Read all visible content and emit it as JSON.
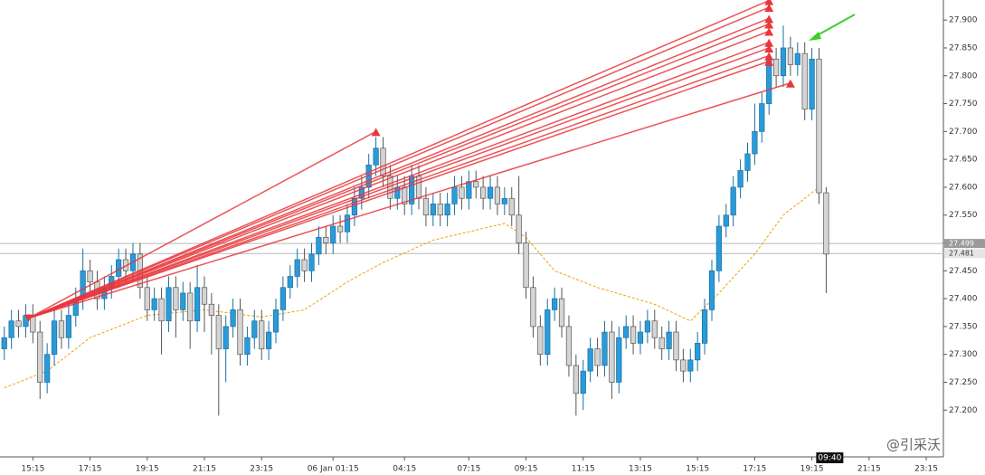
{
  "chart_data": {
    "type": "candlestick",
    "open": [
      27.31,
      27.33,
      27.36,
      27.35,
      27.37,
      27.34,
      27.25,
      27.3,
      27.36,
      27.33,
      27.37,
      27.4,
      27.45,
      27.43,
      27.4,
      27.42,
      27.44,
      27.47,
      27.45,
      27.48,
      27.42,
      27.38,
      27.4,
      27.36,
      27.42,
      27.38,
      27.41,
      27.36,
      27.42,
      27.39,
      27.37,
      27.31,
      27.35,
      27.38,
      27.3,
      27.33,
      27.36,
      27.31,
      27.34,
      27.38,
      27.42,
      27.44,
      27.47,
      27.45,
      27.48,
      27.51,
      27.5,
      27.53,
      27.52,
      27.55,
      27.58,
      27.6,
      27.64,
      27.67,
      27.62,
      27.58,
      27.6,
      27.57,
      27.62,
      27.58,
      27.55,
      27.57,
      27.55,
      27.57,
      27.6,
      27.58,
      27.61,
      27.6,
      27.58,
      27.6,
      27.57,
      27.58,
      27.55,
      27.5,
      27.42,
      27.35,
      27.3,
      27.38,
      27.4,
      27.35,
      27.28,
      27.23,
      27.27,
      27.31,
      27.28,
      27.34,
      27.25,
      27.33,
      27.35,
      27.32,
      27.34,
      27.36,
      27.33,
      27.31,
      27.34,
      27.29,
      27.27,
      27.29,
      27.32,
      27.38,
      27.45,
      27.53,
      27.55,
      27.6,
      27.63,
      27.66,
      27.7,
      27.75,
      27.83,
      27.8,
      27.85,
      27.82,
      27.84,
      27.74,
      27.83,
      27.59
    ],
    "high": [
      27.35,
      27.38,
      27.38,
      27.39,
      27.39,
      27.36,
      27.32,
      27.38,
      27.38,
      27.39,
      27.42,
      27.49,
      27.47,
      27.45,
      27.44,
      27.46,
      27.49,
      27.49,
      27.5,
      27.5,
      27.44,
      27.42,
      27.42,
      27.44,
      27.44,
      27.43,
      27.43,
      27.46,
      27.44,
      27.41,
      27.39,
      27.37,
      27.4,
      27.4,
      27.35,
      27.38,
      27.38,
      27.36,
      27.4,
      27.44,
      27.46,
      27.49,
      27.49,
      27.5,
      27.53,
      27.53,
      27.55,
      27.55,
      27.57,
      27.6,
      27.62,
      27.66,
      27.69,
      27.69,
      27.64,
      27.62,
      27.62,
      27.64,
      27.64,
      27.6,
      27.59,
      27.59,
      27.59,
      27.62,
      27.62,
      27.63,
      27.63,
      27.62,
      27.62,
      27.62,
      27.6,
      27.6,
      27.62,
      27.52,
      27.44,
      27.37,
      27.4,
      27.42,
      27.42,
      27.37,
      27.3,
      27.29,
      27.33,
      27.33,
      27.36,
      27.36,
      27.35,
      27.37,
      27.37,
      27.36,
      27.38,
      27.38,
      27.35,
      27.36,
      27.36,
      27.31,
      27.31,
      27.34,
      27.4,
      27.47,
      27.55,
      27.57,
      27.62,
      27.65,
      27.68,
      27.75,
      27.77,
      27.85,
      27.85,
      27.89,
      27.87,
      27.86,
      27.86,
      27.85,
      27.85,
      27.6
    ],
    "low": [
      27.29,
      27.31,
      27.33,
      27.33,
      27.32,
      27.22,
      27.23,
      27.28,
      27.31,
      27.31,
      27.35,
      27.38,
      27.41,
      27.38,
      27.38,
      27.4,
      27.42,
      27.43,
      27.43,
      27.4,
      27.36,
      27.36,
      27.3,
      27.34,
      27.33,
      27.36,
      27.31,
      27.34,
      27.34,
      27.3,
      27.19,
      27.25,
      27.33,
      27.28,
      27.28,
      27.31,
      27.29,
      27.29,
      27.32,
      27.36,
      27.4,
      27.42,
      27.43,
      27.43,
      27.46,
      27.48,
      27.48,
      27.5,
      27.5,
      27.53,
      27.56,
      27.58,
      27.62,
      27.6,
      27.56,
      27.56,
      27.55,
      27.55,
      27.56,
      27.53,
      27.53,
      27.53,
      27.53,
      27.55,
      27.56,
      27.56,
      27.58,
      27.56,
      27.56,
      27.55,
      27.55,
      27.53,
      27.48,
      27.4,
      27.33,
      27.28,
      27.28,
      27.36,
      27.33,
      27.26,
      27.19,
      27.2,
      27.25,
      27.26,
      27.26,
      27.22,
      27.23,
      27.31,
      27.3,
      27.3,
      27.32,
      27.31,
      27.29,
      27.29,
      27.27,
      27.25,
      27.25,
      27.27,
      27.3,
      27.36,
      27.43,
      27.51,
      27.53,
      27.58,
      27.61,
      27.64,
      27.68,
      27.73,
      27.78,
      27.78,
      27.8,
      27.8,
      27.72,
      27.72,
      27.57,
      27.41
    ],
    "close": [
      27.33,
      27.36,
      27.35,
      27.37,
      27.34,
      27.25,
      27.3,
      27.36,
      27.33,
      27.37,
      27.4,
      27.45,
      27.43,
      27.4,
      27.42,
      27.44,
      27.47,
      27.45,
      27.48,
      27.42,
      27.38,
      27.4,
      27.36,
      27.42,
      27.38,
      27.41,
      27.36,
      27.42,
      27.39,
      27.37,
      27.31,
      27.35,
      27.38,
      27.3,
      27.33,
      27.36,
      27.31,
      27.34,
      27.38,
      27.42,
      27.44,
      27.47,
      27.45,
      27.48,
      27.51,
      27.5,
      27.53,
      27.52,
      27.55,
      27.58,
      27.6,
      27.64,
      27.67,
      27.62,
      27.58,
      27.6,
      27.57,
      27.62,
      27.58,
      27.55,
      27.57,
      27.55,
      27.57,
      27.6,
      27.58,
      27.61,
      27.6,
      27.58,
      27.6,
      27.57,
      27.58,
      27.55,
      27.5,
      27.42,
      27.35,
      27.3,
      27.38,
      27.4,
      27.35,
      27.28,
      27.23,
      27.27,
      27.31,
      27.28,
      27.34,
      27.25,
      27.33,
      27.35,
      27.32,
      27.34,
      27.36,
      27.33,
      27.31,
      27.34,
      27.29,
      27.27,
      27.29,
      27.32,
      27.38,
      27.45,
      27.53,
      27.55,
      27.6,
      27.63,
      27.66,
      27.7,
      27.75,
      27.83,
      27.8,
      27.85,
      27.82,
      27.84,
      27.74,
      27.83,
      27.59,
      27.48
    ],
    "up_color": "#2a9bd8",
    "down_color": "#d4d4d4",
    "ma": {
      "color": "#f0a000",
      "x": [
        0,
        6,
        12,
        20,
        28,
        36,
        42,
        48,
        53,
        60,
        70,
        73,
        77,
        83,
        91,
        96,
        100,
        105,
        109,
        114
      ],
      "values": [
        27.24,
        27.27,
        27.33,
        27.37,
        27.38,
        27.367,
        27.38,
        27.43,
        27.465,
        27.505,
        27.535,
        27.51,
        27.45,
        27.42,
        27.39,
        27.36,
        27.41,
        27.48,
        27.55,
        27.6
      ]
    },
    "trend_lines": {
      "color": "#e8363b",
      "start": [
        3.4,
        27.365
      ],
      "ends": [
        [
          52,
          27.7
        ],
        [
          107,
          27.935
        ],
        [
          107,
          27.923
        ],
        [
          107,
          27.903
        ],
        [
          107,
          27.893
        ],
        [
          107,
          27.88
        ],
        [
          107,
          27.86
        ],
        [
          107,
          27.85
        ],
        [
          107,
          27.836
        ],
        [
          107,
          27.826
        ],
        [
          110,
          27.787
        ]
      ]
    },
    "hlines": [
      {
        "value": 27.499,
        "label": "27.499"
      },
      {
        "value": 27.481,
        "label": "27.481"
      }
    ],
    "cursor_label": "09:40",
    "watermark": "@引采沃",
    "xlim": [
      -0.6,
      131.4
    ],
    "ylim": [
      27.116,
      27.936
    ],
    "xticks": [
      {
        "value": 4,
        "label": "15:15"
      },
      {
        "value": 12,
        "label": "17:15"
      },
      {
        "value": 20,
        "label": "19:15"
      },
      {
        "value": 28,
        "label": "21:15"
      },
      {
        "value": 36,
        "label": "23:15"
      },
      {
        "value": 46,
        "label": "06 Jan 01:15"
      },
      {
        "value": 56,
        "label": "04:15"
      },
      {
        "value": 65,
        "label": "07:15"
      },
      {
        "value": 73,
        "label": "09:15"
      },
      {
        "value": 81,
        "label": "11:15"
      },
      {
        "value": 89,
        "label": "13:15"
      },
      {
        "value": 97,
        "label": "15:15"
      },
      {
        "value": 105,
        "label": "17:15"
      },
      {
        "value": 113,
        "label": "19:15"
      },
      {
        "value": 121,
        "label": "21:15"
      },
      {
        "value": 129,
        "label": "23:15"
      }
    ],
    "yticks": [
      {
        "value": 27.2,
        "label": "27.200"
      },
      {
        "value": 27.25,
        "label": "27.250"
      },
      {
        "value": 27.3,
        "label": "27.300"
      },
      {
        "value": 27.35,
        "label": "27.350"
      },
      {
        "value": 27.4,
        "label": "27.400"
      },
      {
        "value": 27.45,
        "label": "27.450"
      },
      {
        "value": 27.5,
        "label": "27.500"
      },
      {
        "value": 27.55,
        "label": "27.550"
      },
      {
        "value": 27.6,
        "label": "27.600"
      },
      {
        "value": 27.65,
        "label": "27.650"
      },
      {
        "value": 27.7,
        "label": "27.700"
      },
      {
        "value": 27.75,
        "label": "27.750"
      },
      {
        "value": 27.8,
        "label": "27.800"
      },
      {
        "value": 27.85,
        "label": "27.850"
      },
      {
        "value": 27.9,
        "label": "27.900"
      }
    ]
  }
}
